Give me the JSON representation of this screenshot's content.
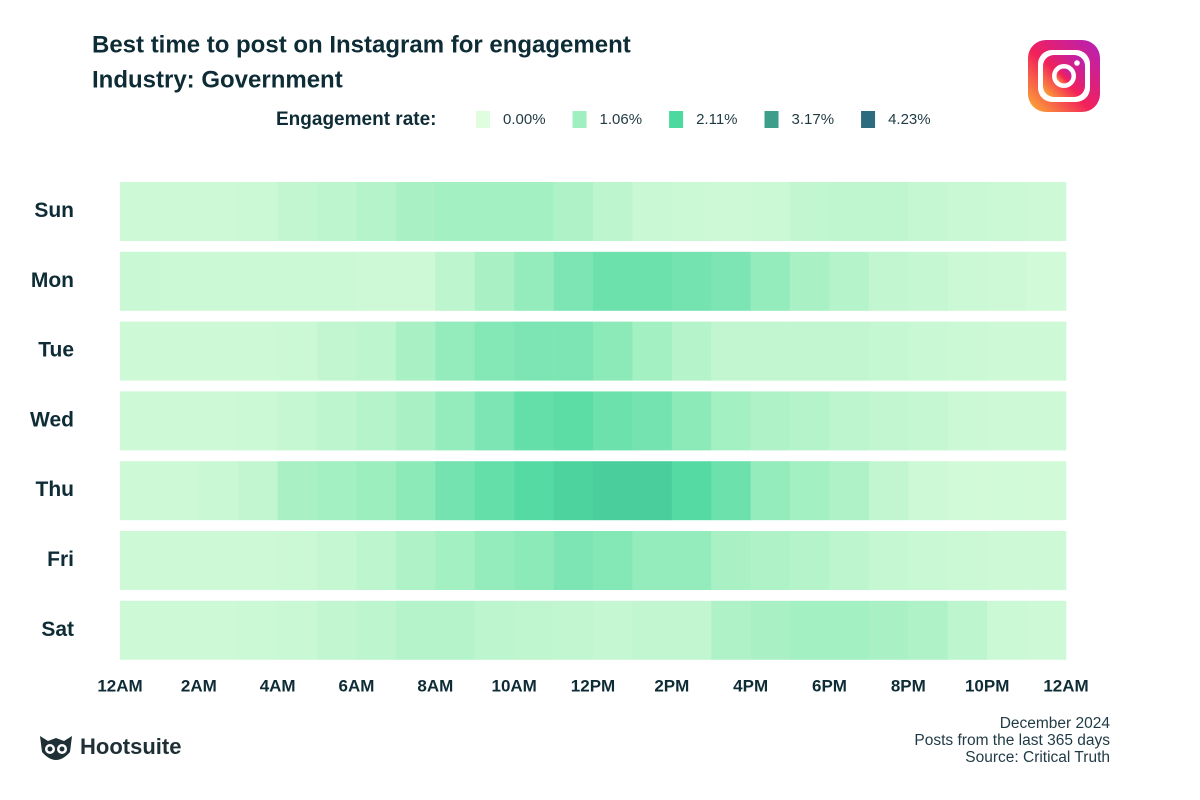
{
  "chart_data": {
    "type": "heatmap",
    "title": "Best time to post on Instagram for engagement",
    "subtitle": "Industry: Government",
    "legend_title": "Engagement rate:",
    "colorscale": [
      {
        "value": 0,
        "label": "0.00%"
      },
      {
        "value": 1.06,
        "label": "1.06%"
      },
      {
        "value": 2.11,
        "label": "2.11%"
      },
      {
        "value": 3.17,
        "label": "3.17%"
      },
      {
        "value": 4.23,
        "label": "4.23%"
      }
    ],
    "colors": [
      "#e1fde0",
      "#9fefc0",
      "#4dd8a0",
      "#3d9e8b",
      "#2d6c7f"
    ],
    "categories": [
      "Sun",
      "Mon",
      "Tue",
      "Wed",
      "Thu",
      "Fri",
      "Sat"
    ],
    "xlim": [
      0,
      24
    ],
    "xticks": [
      {
        "value": 0,
        "label": "12AM"
      },
      {
        "value": 2,
        "label": "2AM"
      },
      {
        "value": 4,
        "label": "4AM"
      },
      {
        "value": 6,
        "label": "6AM"
      },
      {
        "value": 8,
        "label": "8AM"
      },
      {
        "value": 10,
        "label": "10AM"
      },
      {
        "value": 12,
        "label": "12PM"
      },
      {
        "value": 14,
        "label": "2PM"
      },
      {
        "value": 16,
        "label": "4PM"
      },
      {
        "value": 18,
        "label": "6PM"
      },
      {
        "value": 20,
        "label": "8PM"
      },
      {
        "value": 22,
        "label": "10PM"
      },
      {
        "value": 24,
        "label": "12AM"
      }
    ],
    "values": [
      [
        0.3,
        0.3,
        0.3,
        0.35,
        0.5,
        0.6,
        0.7,
        0.9,
        1.0,
        1.0,
        1.0,
        0.8,
        0.6,
        0.4,
        0.35,
        0.3,
        0.35,
        0.5,
        0.55,
        0.55,
        0.45,
        0.4,
        0.35,
        0.3
      ],
      [
        0.4,
        0.35,
        0.35,
        0.35,
        0.35,
        0.35,
        0.3,
        0.3,
        0.6,
        0.9,
        1.2,
        1.5,
        1.7,
        1.7,
        1.6,
        1.5,
        1.2,
        0.9,
        0.7,
        0.5,
        0.45,
        0.35,
        0.3,
        0.25
      ],
      [
        0.3,
        0.3,
        0.3,
        0.3,
        0.35,
        0.5,
        0.6,
        0.9,
        1.2,
        1.4,
        1.5,
        1.5,
        1.3,
        1.0,
        0.7,
        0.5,
        0.5,
        0.5,
        0.5,
        0.45,
        0.4,
        0.35,
        0.3,
        0.3
      ],
      [
        0.3,
        0.3,
        0.3,
        0.35,
        0.45,
        0.6,
        0.7,
        0.9,
        1.2,
        1.5,
        1.8,
        1.9,
        1.7,
        1.6,
        1.3,
        1.0,
        0.8,
        0.7,
        0.6,
        0.5,
        0.45,
        0.35,
        0.3,
        0.3
      ],
      [
        0.3,
        0.3,
        0.4,
        0.5,
        0.9,
        1.0,
        1.1,
        1.3,
        1.6,
        1.8,
        2.0,
        2.2,
        2.3,
        2.3,
        2.0,
        1.7,
        1.2,
        1.0,
        0.8,
        0.5,
        0.3,
        0.25,
        0.25,
        0.25
      ],
      [
        0.3,
        0.3,
        0.3,
        0.3,
        0.35,
        0.45,
        0.6,
        0.8,
        1.0,
        1.2,
        1.3,
        1.5,
        1.4,
        1.2,
        1.2,
        0.9,
        0.8,
        0.7,
        0.6,
        0.45,
        0.4,
        0.35,
        0.3,
        0.3
      ],
      [
        0.3,
        0.3,
        0.3,
        0.35,
        0.4,
        0.5,
        0.6,
        0.7,
        0.7,
        0.6,
        0.55,
        0.5,
        0.45,
        0.5,
        0.5,
        0.8,
        0.9,
        1.0,
        1.0,
        0.9,
        0.8,
        0.6,
        0.35,
        0.3
      ]
    ],
    "footnotes": [
      "December 2024",
      "Posts from the last 365 days",
      "Source: Critical Truth"
    ],
    "brand": "Hootsuite"
  }
}
